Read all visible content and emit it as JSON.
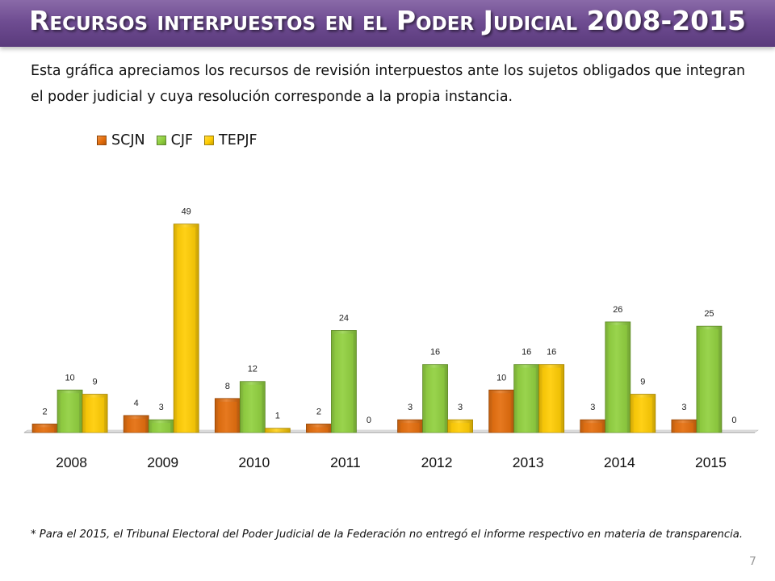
{
  "slide": {
    "title": "Recursos interpuestos en el Poder Judicial 2008-2015",
    "intro": "Esta gráfica apreciamos los recursos de revisión interpuestos ante los sujetos obligados que integran el poder judicial y cuya resolución corresponde a la propia instancia.",
    "footnote": "* Para el 2015, el Tribunal Electoral del Poder Judicial de la Federación no entregó el informe respectivo en materia de transparencia.",
    "page_number": "7"
  },
  "chart_data": {
    "type": "bar",
    "title": "",
    "xlabel": "",
    "ylabel": "",
    "ylim": [
      0,
      55
    ],
    "grid": false,
    "legend_position": "top-left",
    "categories": [
      "2008",
      "2009",
      "2010",
      "2011",
      "2012",
      "2013",
      "2014",
      "2015"
    ],
    "series": [
      {
        "name": "SCJN",
        "color": "#e46c0a",
        "values": [
          2,
          4,
          8,
          2,
          3,
          10,
          3,
          3
        ]
      },
      {
        "name": "CJF",
        "color": "#8fcf3c",
        "values": [
          10,
          3,
          12,
          24,
          16,
          16,
          26,
          25
        ]
      },
      {
        "name": "TEPJF",
        "color": "#ffcc00",
        "values": [
          9,
          49,
          1,
          0,
          3,
          16,
          9,
          0
        ]
      }
    ]
  }
}
